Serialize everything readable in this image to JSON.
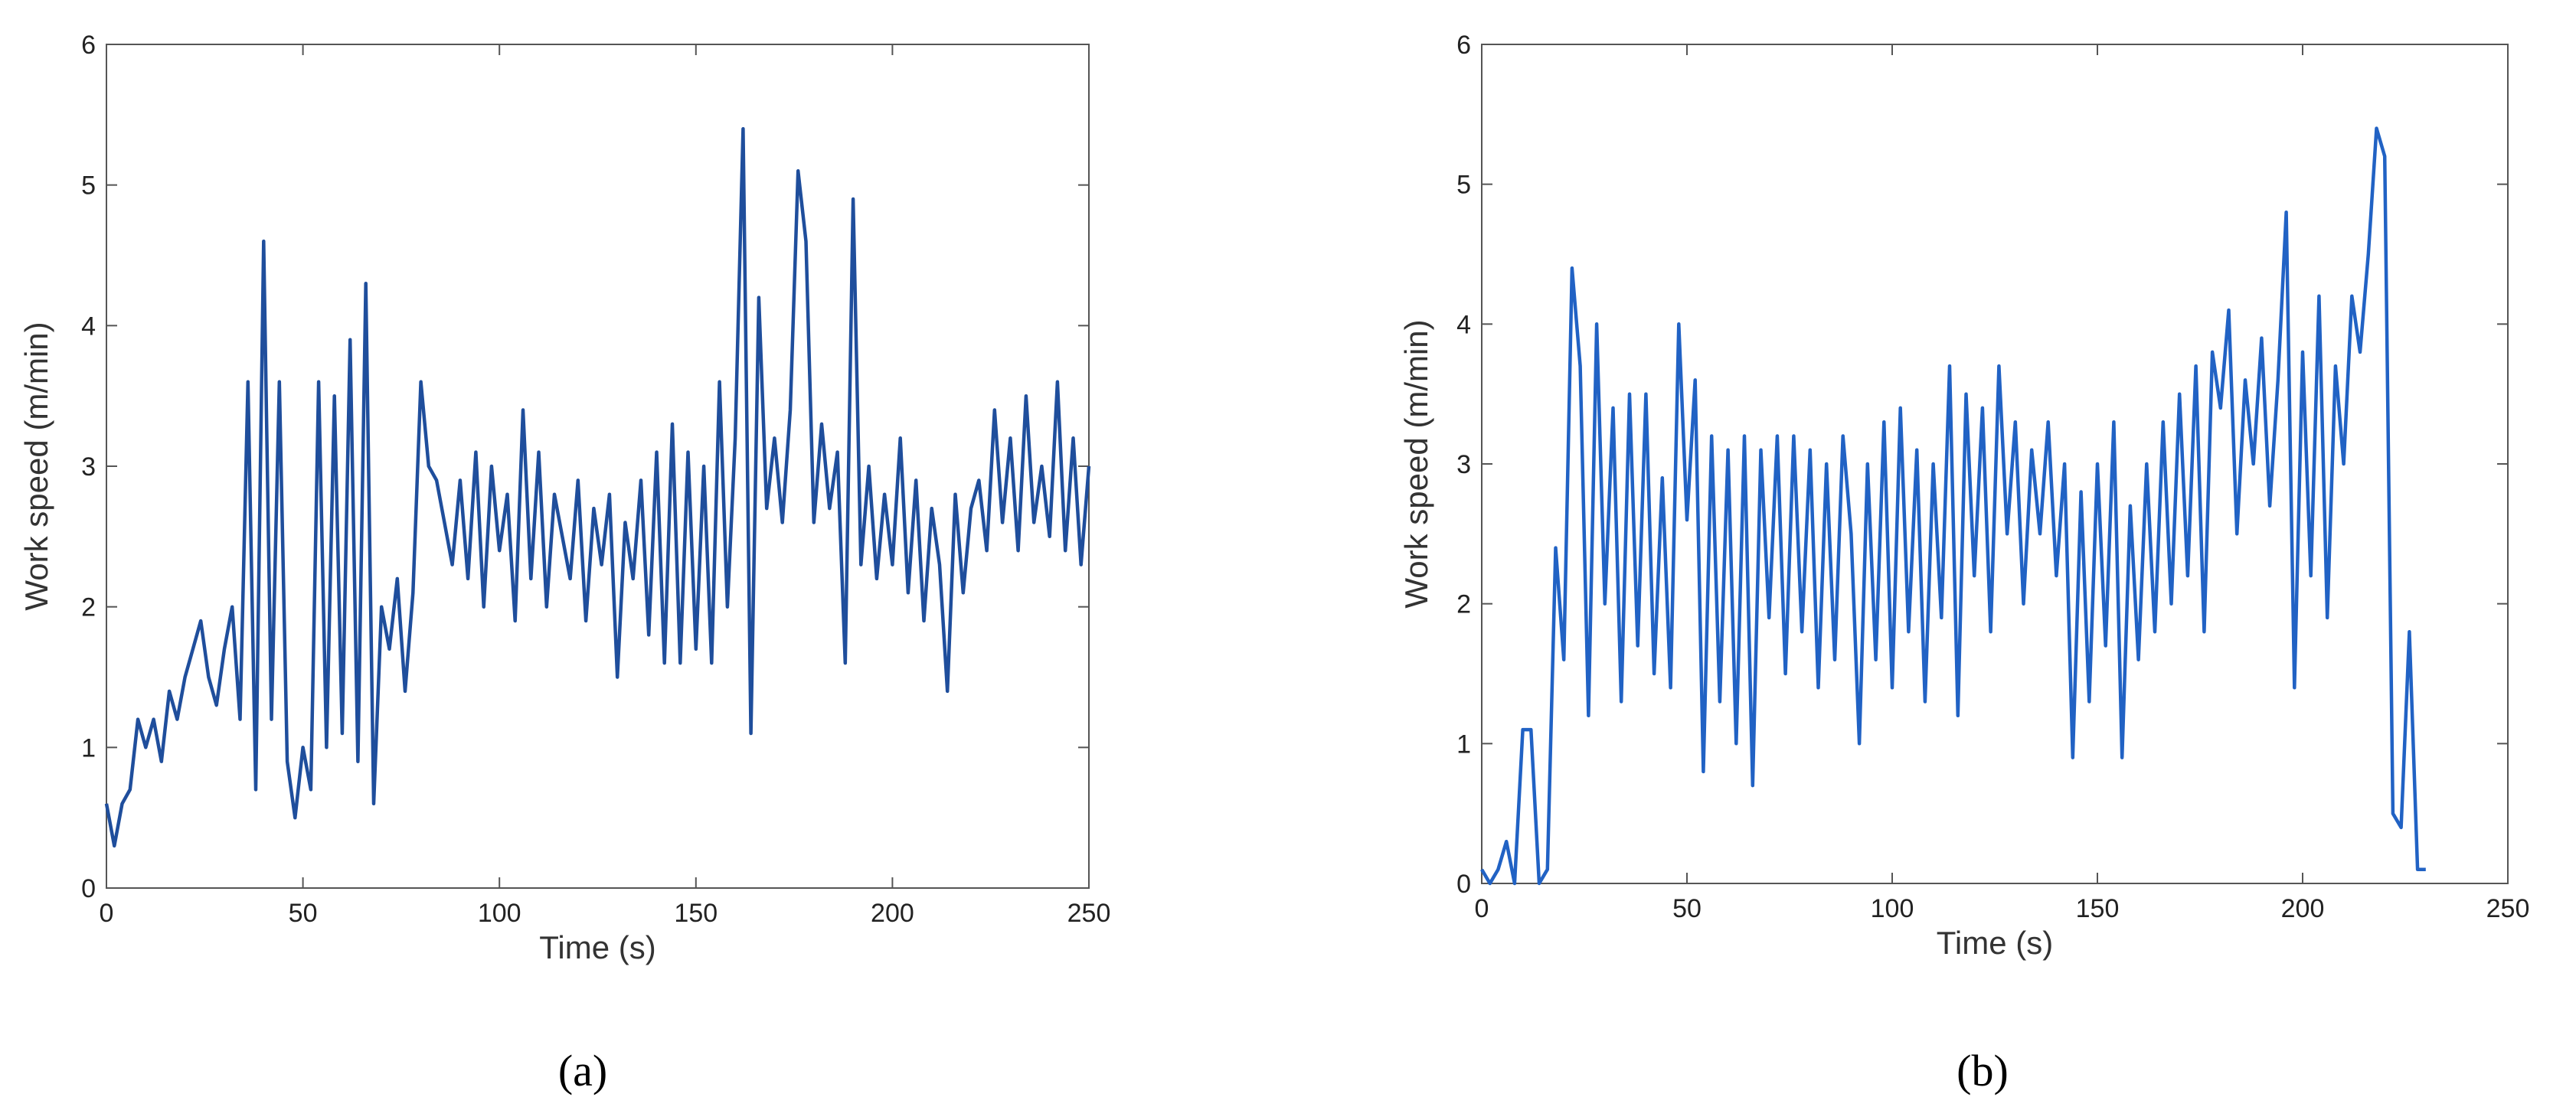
{
  "chart_data": [
    {
      "type": "line",
      "caption": "(a)",
      "xlabel": "Time (s)",
      "ylabel": "Work speed (m/min)",
      "xlim": [
        0,
        250
      ],
      "ylim": [
        0,
        6
      ],
      "xticks": [
        0,
        50,
        100,
        150,
        200,
        250
      ],
      "yticks": [
        0,
        1,
        2,
        3,
        4,
        5,
        6
      ],
      "series": [
        {
          "color": "#1f4e9c",
          "x": [
            0,
            2,
            4,
            6,
            8,
            10,
            12,
            14,
            16,
            18,
            20,
            22,
            24,
            26,
            28,
            30,
            32,
            34,
            36,
            38,
            40,
            42,
            44,
            46,
            48,
            50,
            52,
            54,
            56,
            58,
            60,
            62,
            64,
            66,
            68,
            70,
            72,
            74,
            76,
            78,
            80,
            82,
            84,
            86,
            88,
            90,
            92,
            94,
            96,
            98,
            100,
            102,
            104,
            106,
            108,
            110,
            112,
            114,
            116,
            118,
            120,
            122,
            124,
            126,
            128,
            130,
            132,
            134,
            136,
            138,
            140,
            142,
            144,
            146,
            148,
            150,
            152,
            154,
            156,
            158,
            160,
            162,
            164,
            166,
            168,
            170,
            172,
            174,
            176,
            178,
            180,
            182,
            184,
            186,
            188,
            190,
            192,
            194,
            196,
            198,
            200,
            202,
            204,
            206,
            208,
            210,
            212,
            214,
            216,
            218,
            220,
            222,
            224,
            226,
            228,
            230,
            232,
            234,
            236,
            238,
            240,
            242,
            244,
            246,
            248,
            250
          ],
          "values": [
            0.6,
            0.3,
            0.6,
            0.7,
            1.2,
            1.0,
            1.2,
            0.9,
            1.4,
            1.2,
            1.5,
            1.7,
            1.9,
            1.5,
            1.3,
            1.7,
            2.0,
            1.2,
            3.6,
            0.7,
            4.6,
            1.2,
            3.6,
            0.9,
            0.5,
            1.0,
            0.7,
            3.6,
            1.0,
            3.5,
            1.1,
            3.9,
            0.9,
            4.3,
            0.6,
            2.0,
            1.7,
            2.2,
            1.4,
            2.1,
            3.6,
            3.0,
            2.9,
            2.6,
            2.3,
            2.9,
            2.2,
            3.1,
            2.0,
            3.0,
            2.4,
            2.8,
            1.9,
            3.4,
            2.2,
            3.1,
            2.0,
            2.8,
            2.5,
            2.2,
            2.9,
            1.9,
            2.7,
            2.3,
            2.8,
            1.5,
            2.6,
            2.2,
            2.9,
            1.8,
            3.1,
            1.6,
            3.3,
            1.6,
            3.1,
            1.7,
            3.0,
            1.6,
            3.6,
            2.0,
            3.2,
            5.4,
            1.1,
            4.2,
            2.7,
            3.2,
            2.6,
            3.4,
            5.1,
            4.6,
            2.6,
            3.3,
            2.7,
            3.1,
            1.6,
            4.9,
            2.3,
            3.0,
            2.2,
            2.8,
            2.3,
            3.2,
            2.1,
            2.9,
            1.9,
            2.7,
            2.3,
            1.4,
            2.8,
            2.1,
            2.7,
            2.9,
            2.4,
            3.4,
            2.6,
            3.2,
            2.4,
            3.5,
            2.6,
            3.0,
            2.5,
            3.6,
            2.4,
            3.2,
            2.3,
            3.0
          ]
        }
      ]
    },
    {
      "type": "line",
      "caption": "(b)",
      "xlabel": "Time (s)",
      "ylabel": "Work speed (m/min)",
      "xlim": [
        0,
        250
      ],
      "ylim": [
        0,
        6
      ],
      "xticks": [
        0,
        50,
        100,
        150,
        200,
        250
      ],
      "yticks": [
        0,
        1,
        2,
        3,
        4,
        5,
        6
      ],
      "series": [
        {
          "color": "#2162c4",
          "x": [
            0,
            2,
            4,
            6,
            8,
            10,
            12,
            14,
            16,
            18,
            20,
            22,
            24,
            26,
            28,
            30,
            32,
            34,
            36,
            38,
            40,
            42,
            44,
            46,
            48,
            50,
            52,
            54,
            56,
            58,
            60,
            62,
            64,
            66,
            68,
            70,
            72,
            74,
            76,
            78,
            80,
            82,
            84,
            86,
            88,
            90,
            92,
            94,
            96,
            98,
            100,
            102,
            104,
            106,
            108,
            110,
            112,
            114,
            116,
            118,
            120,
            122,
            124,
            126,
            128,
            130,
            132,
            134,
            136,
            138,
            140,
            142,
            144,
            146,
            148,
            150,
            152,
            154,
            156,
            158,
            160,
            162,
            164,
            166,
            168,
            170,
            172,
            174,
            176,
            178,
            180,
            182,
            184,
            186,
            188,
            190,
            192,
            194,
            196,
            198,
            200,
            202,
            204,
            206,
            208,
            210,
            212,
            214,
            216,
            218,
            220,
            222,
            224,
            226,
            228,
            230
          ],
          "values": [
            0.1,
            0,
            0.1,
            0.3,
            0,
            1.1,
            1.1,
            0,
            0.1,
            2.4,
            1.6,
            4.4,
            3.7,
            1.2,
            4.0,
            2.0,
            3.4,
            1.3,
            3.5,
            1.7,
            3.5,
            1.5,
            2.9,
            1.4,
            4.0,
            2.6,
            3.6,
            0.8,
            3.2,
            1.3,
            3.1,
            1.0,
            3.2,
            0.7,
            3.1,
            1.9,
            3.2,
            1.5,
            3.2,
            1.8,
            3.1,
            1.4,
            3.0,
            1.6,
            3.2,
            2.5,
            1.0,
            3.0,
            1.6,
            3.3,
            1.4,
            3.4,
            1.8,
            3.1,
            1.3,
            3.0,
            1.9,
            3.7,
            1.2,
            3.5,
            2.2,
            3.4,
            1.8,
            3.7,
            2.5,
            3.3,
            2.0,
            3.1,
            2.5,
            3.3,
            2.2,
            3.0,
            0.9,
            2.8,
            1.3,
            3.0,
            1.7,
            3.3,
            0.9,
            2.7,
            1.6,
            3.0,
            1.8,
            3.3,
            2.0,
            3.5,
            2.2,
            3.7,
            1.8,
            3.8,
            3.4,
            4.1,
            2.5,
            3.6,
            3.0,
            3.9,
            2.7,
            3.6,
            4.8,
            1.4,
            3.8,
            2.2,
            4.2,
            1.9,
            3.7,
            3.0,
            4.2,
            3.8,
            4.5,
            5.4,
            5.2,
            0.5,
            0.4,
            1.8,
            0.1,
            0.1
          ]
        }
      ]
    }
  ]
}
